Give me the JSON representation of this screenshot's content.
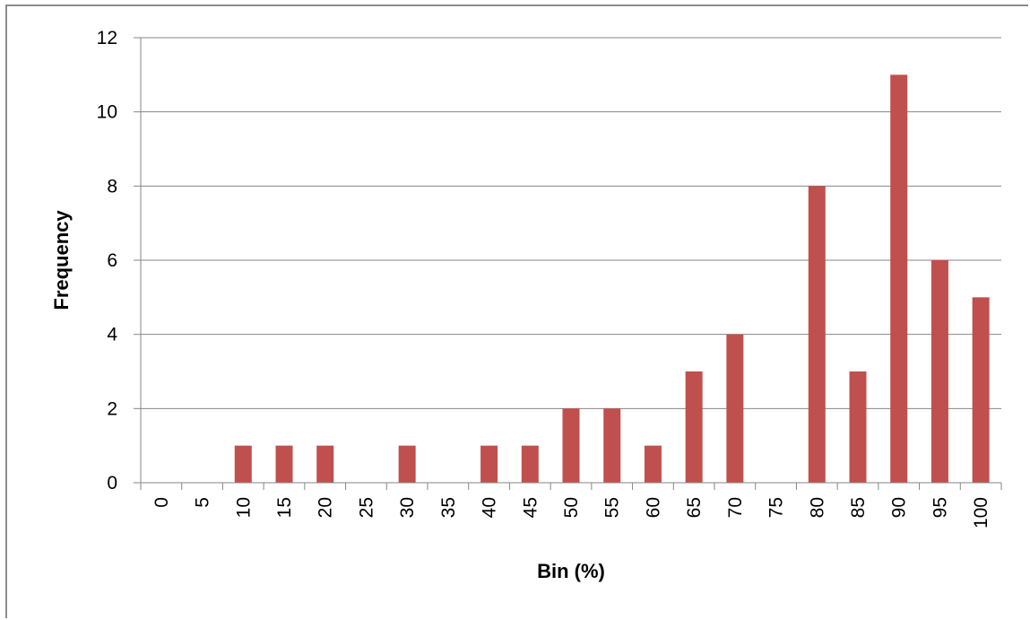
{
  "chart_data": {
    "type": "bar",
    "title": "",
    "xlabel": "Bin (%)",
    "ylabel": "Frequency",
    "categories": [
      "0",
      "5",
      "10",
      "15",
      "20",
      "25",
      "30",
      "35",
      "40",
      "45",
      "50",
      "55",
      "60",
      "65",
      "70",
      "75",
      "80",
      "85",
      "90",
      "95",
      "100"
    ],
    "values": [
      0,
      0,
      1,
      1,
      1,
      0,
      1,
      0,
      1,
      1,
      2,
      2,
      1,
      3,
      4,
      0,
      8,
      3,
      11,
      6,
      5
    ],
    "ylim": [
      0,
      12
    ],
    "yticks": [
      "0",
      "2",
      "4",
      "6",
      "8",
      "10",
      "12"
    ],
    "grid": "horizontal",
    "legend": "none",
    "bar_color": "#c0504d",
    "grid_color": "#868686",
    "axis_color": "#868686"
  }
}
